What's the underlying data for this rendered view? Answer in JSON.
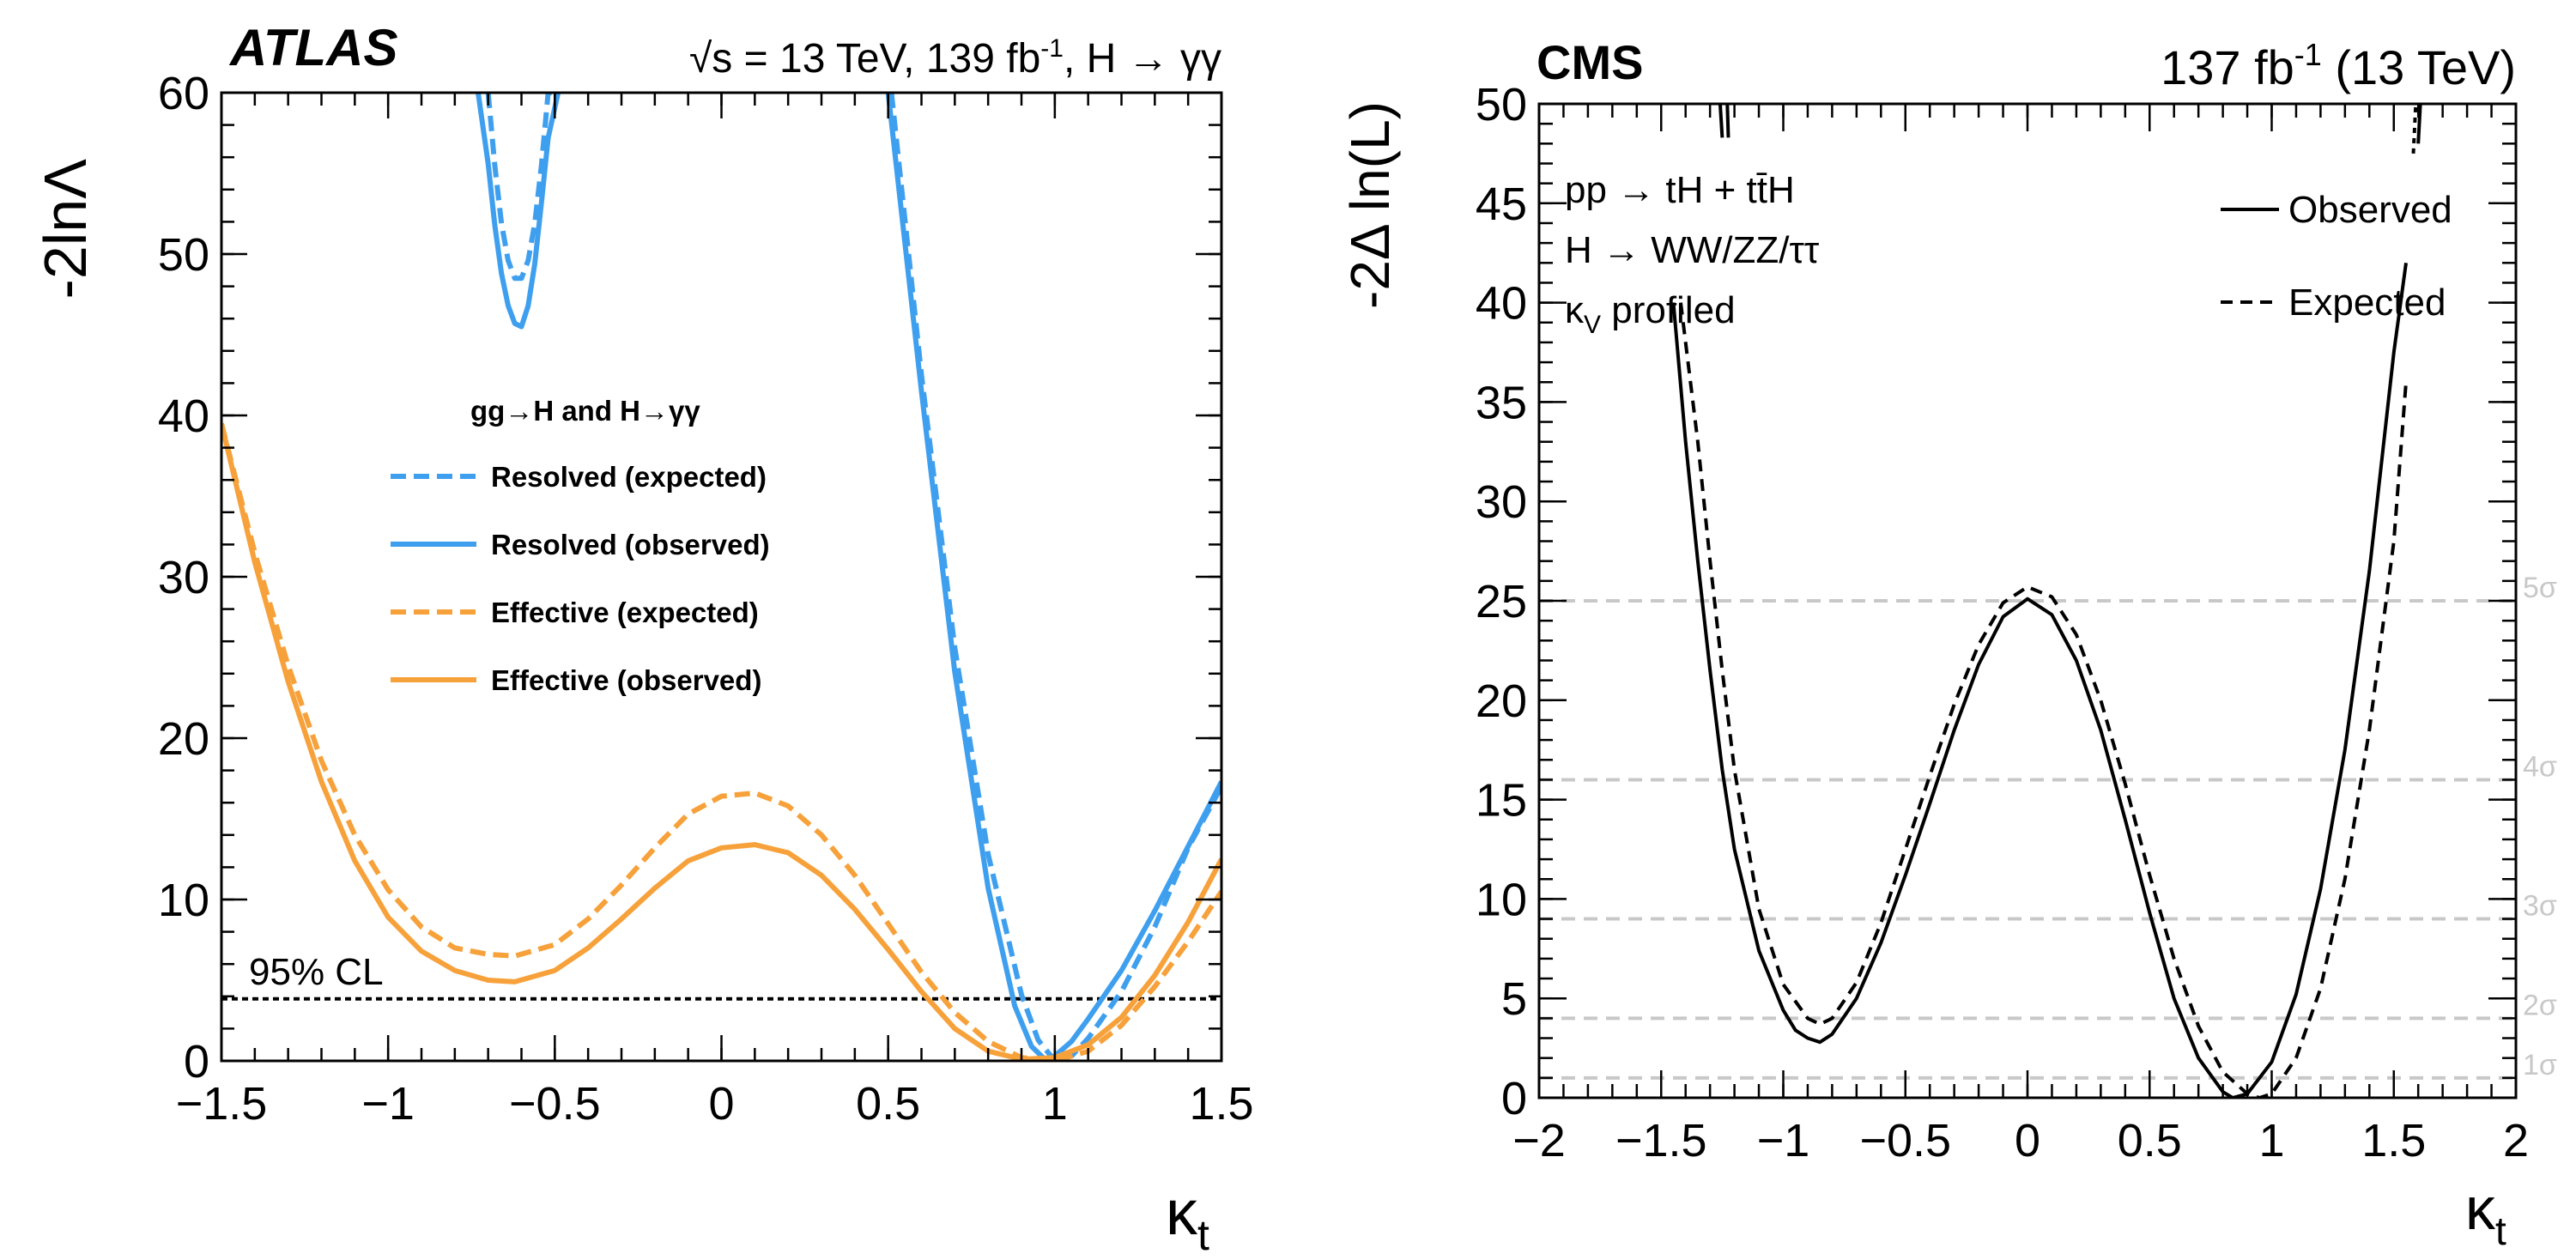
{
  "chart_data": [
    {
      "type": "line",
      "experiment": "ATLAS",
      "header": "√s = 13 TeV, 139 fb",
      "header_sup": "-1",
      "header_tail": ", H → γγ",
      "xlabel": "κ",
      "xlabel_sub": "t",
      "ylabel": "-2lnΛ",
      "xlim": [
        -1.5,
        1.5
      ],
      "ylim": [
        0,
        60
      ],
      "xticks": [
        -1.5,
        -1,
        -0.5,
        0,
        0.5,
        1,
        1.5
      ],
      "xtick_labels": [
        "−1.5",
        "−1",
        "−0.5",
        "0",
        "0.5",
        "1",
        "1.5"
      ],
      "yticks": [
        0,
        10,
        20,
        30,
        40,
        50,
        60
      ],
      "ytick_labels": [
        "0",
        "10",
        "20",
        "30",
        "40",
        "50",
        "60"
      ],
      "legend_title": "gg→H and H→γγ",
      "cl_line": {
        "label": "95% CL",
        "y": 3.84
      },
      "colors": {
        "resolved": "#3f9fef",
        "effective": "#f7a13b"
      },
      "series": [
        {
          "name": "Resolved (expected)",
          "color": "#3f9fef",
          "dash": true,
          "x": [
            -0.7,
            -0.68,
            -0.66,
            -0.64,
            -0.62,
            -0.6,
            -0.58,
            -0.56,
            -0.54,
            -0.52,
            -0.5
          ],
          "y": [
            60,
            55.5,
            51.9,
            49.6,
            48.5,
            48.5,
            49.6,
            51.9,
            55.5,
            60,
            60
          ]
        },
        {
          "name": "Resolved (observed)",
          "color": "#3f9fef",
          "dash": false,
          "x": [
            -0.73,
            -0.7,
            -0.68,
            -0.66,
            -0.64,
            -0.62,
            -0.6,
            -0.58,
            -0.56,
            -0.54,
            -0.52,
            -0.49
          ],
          "y": [
            60,
            55.6,
            51.8,
            48.8,
            46.8,
            45.7,
            45.5,
            46.8,
            49.4,
            53.2,
            57.2,
            60
          ]
        },
        {
          "name": "Resolved expected main",
          "color": "#3f9fef",
          "dash": true,
          "x": [
            0.51,
            0.6,
            0.7,
            0.8,
            0.9,
            0.95,
            1.0,
            1.05,
            1.1,
            1.2,
            1.3,
            1.4,
            1.5
          ],
          "y": [
            60,
            42.5,
            25.6,
            12.8,
            4.1,
            1.3,
            0,
            0.3,
            1.4,
            4.3,
            8.3,
            13.2,
            17.0
          ]
        },
        {
          "name": "Resolved observed main",
          "color": "#3f9fef",
          "dash": false,
          "x": [
            0.5,
            0.6,
            0.7,
            0.8,
            0.88,
            0.93,
            0.97,
            1.0,
            1.05,
            1.1,
            1.2,
            1.3,
            1.4,
            1.5
          ],
          "y": [
            60,
            41.5,
            24.1,
            10.7,
            3.4,
            0.9,
            0.1,
            0.3,
            1.2,
            2.6,
            5.6,
            9.3,
            13.3,
            17.3
          ]
        },
        {
          "name": "Effective (expected)",
          "color": "#f7a13b",
          "dash": true,
          "x": [
            -1.5,
            -1.4,
            -1.3,
            -1.2,
            -1.1,
            -1.0,
            -0.9,
            -0.8,
            -0.7,
            -0.62,
            -0.5,
            -0.4,
            -0.3,
            -0.2,
            -0.1,
            0.0,
            0.1,
            0.2,
            0.3,
            0.4,
            0.5,
            0.6,
            0.7,
            0.8,
            0.9,
            1.0,
            1.1,
            1.2,
            1.3,
            1.4,
            1.5
          ],
          "y": [
            39.5,
            31.5,
            24.5,
            18.6,
            14.0,
            10.6,
            8.3,
            7.0,
            6.6,
            6.5,
            7.2,
            8.8,
            10.9,
            13.2,
            15.3,
            16.4,
            16.6,
            15.8,
            14.0,
            11.5,
            8.5,
            5.5,
            3.0,
            1.2,
            0.2,
            0.0,
            0.6,
            2.2,
            4.6,
            7.4,
            10.5
          ]
        },
        {
          "name": "Effective (observed)",
          "color": "#f7a13b",
          "dash": false,
          "x": [
            -1.5,
            -1.4,
            -1.3,
            -1.2,
            -1.1,
            -1.0,
            -0.9,
            -0.8,
            -0.7,
            -0.62,
            -0.5,
            -0.4,
            -0.3,
            -0.2,
            -0.1,
            0.0,
            0.1,
            0.2,
            0.3,
            0.4,
            0.5,
            0.6,
            0.7,
            0.8,
            0.9,
            1.0,
            1.1,
            1.2,
            1.3,
            1.4,
            1.5
          ],
          "y": [
            39.5,
            30.9,
            23.5,
            17.3,
            12.4,
            8.9,
            6.8,
            5.6,
            5.0,
            4.9,
            5.6,
            7.0,
            8.8,
            10.7,
            12.4,
            13.2,
            13.4,
            12.9,
            11.5,
            9.4,
            6.9,
            4.3,
            2.0,
            0.6,
            0.1,
            0.2,
            1.0,
            2.7,
            5.3,
            8.6,
            12.5
          ]
        }
      ]
    },
    {
      "type": "line",
      "experiment": "CMS",
      "header": "137 fb",
      "header_sup": "-1",
      "header_tail": " (13 TeV)",
      "xlabel": "κ",
      "xlabel_sub": "t",
      "ylabel": "-2Δ ln(L)",
      "xlim": [
        -2,
        2
      ],
      "ylim": [
        0,
        50
      ],
      "xticks": [
        -2,
        -1.5,
        -1,
        -0.5,
        0,
        0.5,
        1,
        1.5,
        2
      ],
      "xtick_labels": [
        "−2",
        "−1.5",
        "−1",
        "−0.5",
        "0",
        "0.5",
        "1",
        "1.5",
        "2"
      ],
      "yticks": [
        0,
        5,
        10,
        15,
        20,
        25,
        30,
        35,
        40,
        45,
        50
      ],
      "ytick_labels": [
        "0",
        "5",
        "10",
        "15",
        "20",
        "25",
        "30",
        "35",
        "40",
        "45",
        "50"
      ],
      "process_lines": [
        "pp → tH + tt̄H",
        "H → WW/ZZ/ττ",
        "κ profiled"
      ],
      "process_kappa_sub": "V",
      "sigma_lines": [
        {
          "y": 1,
          "label": "1σ"
        },
        {
          "y": 4,
          "label": "2σ"
        },
        {
          "y": 9,
          "label": "3σ"
        },
        {
          "y": 16,
          "label": "4σ"
        },
        {
          "y": 25,
          "label": "5σ"
        }
      ],
      "series": [
        {
          "name": "Observed",
          "dash": false,
          "x": [
            -1.45,
            -1.4,
            -1.35,
            -1.3,
            -1.25,
            -1.2,
            -1.1,
            -1.0,
            -0.95,
            -0.9,
            -0.85,
            -0.8,
            -0.7,
            -0.6,
            -0.5,
            -0.4,
            -0.3,
            -0.2,
            -0.1,
            0.0,
            0.1,
            0.2,
            0.3,
            0.4,
            0.5,
            0.6,
            0.7,
            0.8,
            0.84,
            0.9,
            1.0,
            1.1,
            1.2,
            1.3,
            1.4,
            1.5,
            1.55
          ],
          "y": [
            40,
            33,
            27,
            21.5,
            16.5,
            12.5,
            7.4,
            4.4,
            3.4,
            3.0,
            2.8,
            3.2,
            5.0,
            7.8,
            11.2,
            14.8,
            18.5,
            21.8,
            24.2,
            25.1,
            24.3,
            22.0,
            18.5,
            14.0,
            9.3,
            5.0,
            2.0,
            0.3,
            0,
            0.2,
            1.8,
            5.2,
            10.5,
            17.5,
            26.5,
            37.5,
            42
          ]
        },
        {
          "name": "Expected",
          "dash": true,
          "x": [
            -1.42,
            -1.35,
            -1.3,
            -1.25,
            -1.2,
            -1.1,
            -1.0,
            -0.9,
            -0.85,
            -0.8,
            -0.7,
            -0.6,
            -0.5,
            -0.4,
            -0.3,
            -0.2,
            -0.1,
            0.0,
            0.1,
            0.2,
            0.3,
            0.4,
            0.5,
            0.6,
            0.7,
            0.8,
            0.9,
            0.95,
            1.0,
            1.1,
            1.2,
            1.3,
            1.4,
            1.5,
            1.55
          ],
          "y": [
            40,
            33,
            27,
            21.5,
            16.5,
            9.5,
            5.7,
            4.0,
            3.7,
            4.0,
            5.8,
            8.8,
            12.5,
            16.2,
            19.8,
            22.8,
            24.9,
            25.7,
            25.2,
            23.3,
            20.0,
            15.8,
            11.2,
            7.0,
            3.6,
            1.3,
            0.2,
            0,
            0.2,
            2.0,
            5.5,
            11.0,
            18.5,
            28.0,
            36
          ]
        }
      ]
    }
  ]
}
